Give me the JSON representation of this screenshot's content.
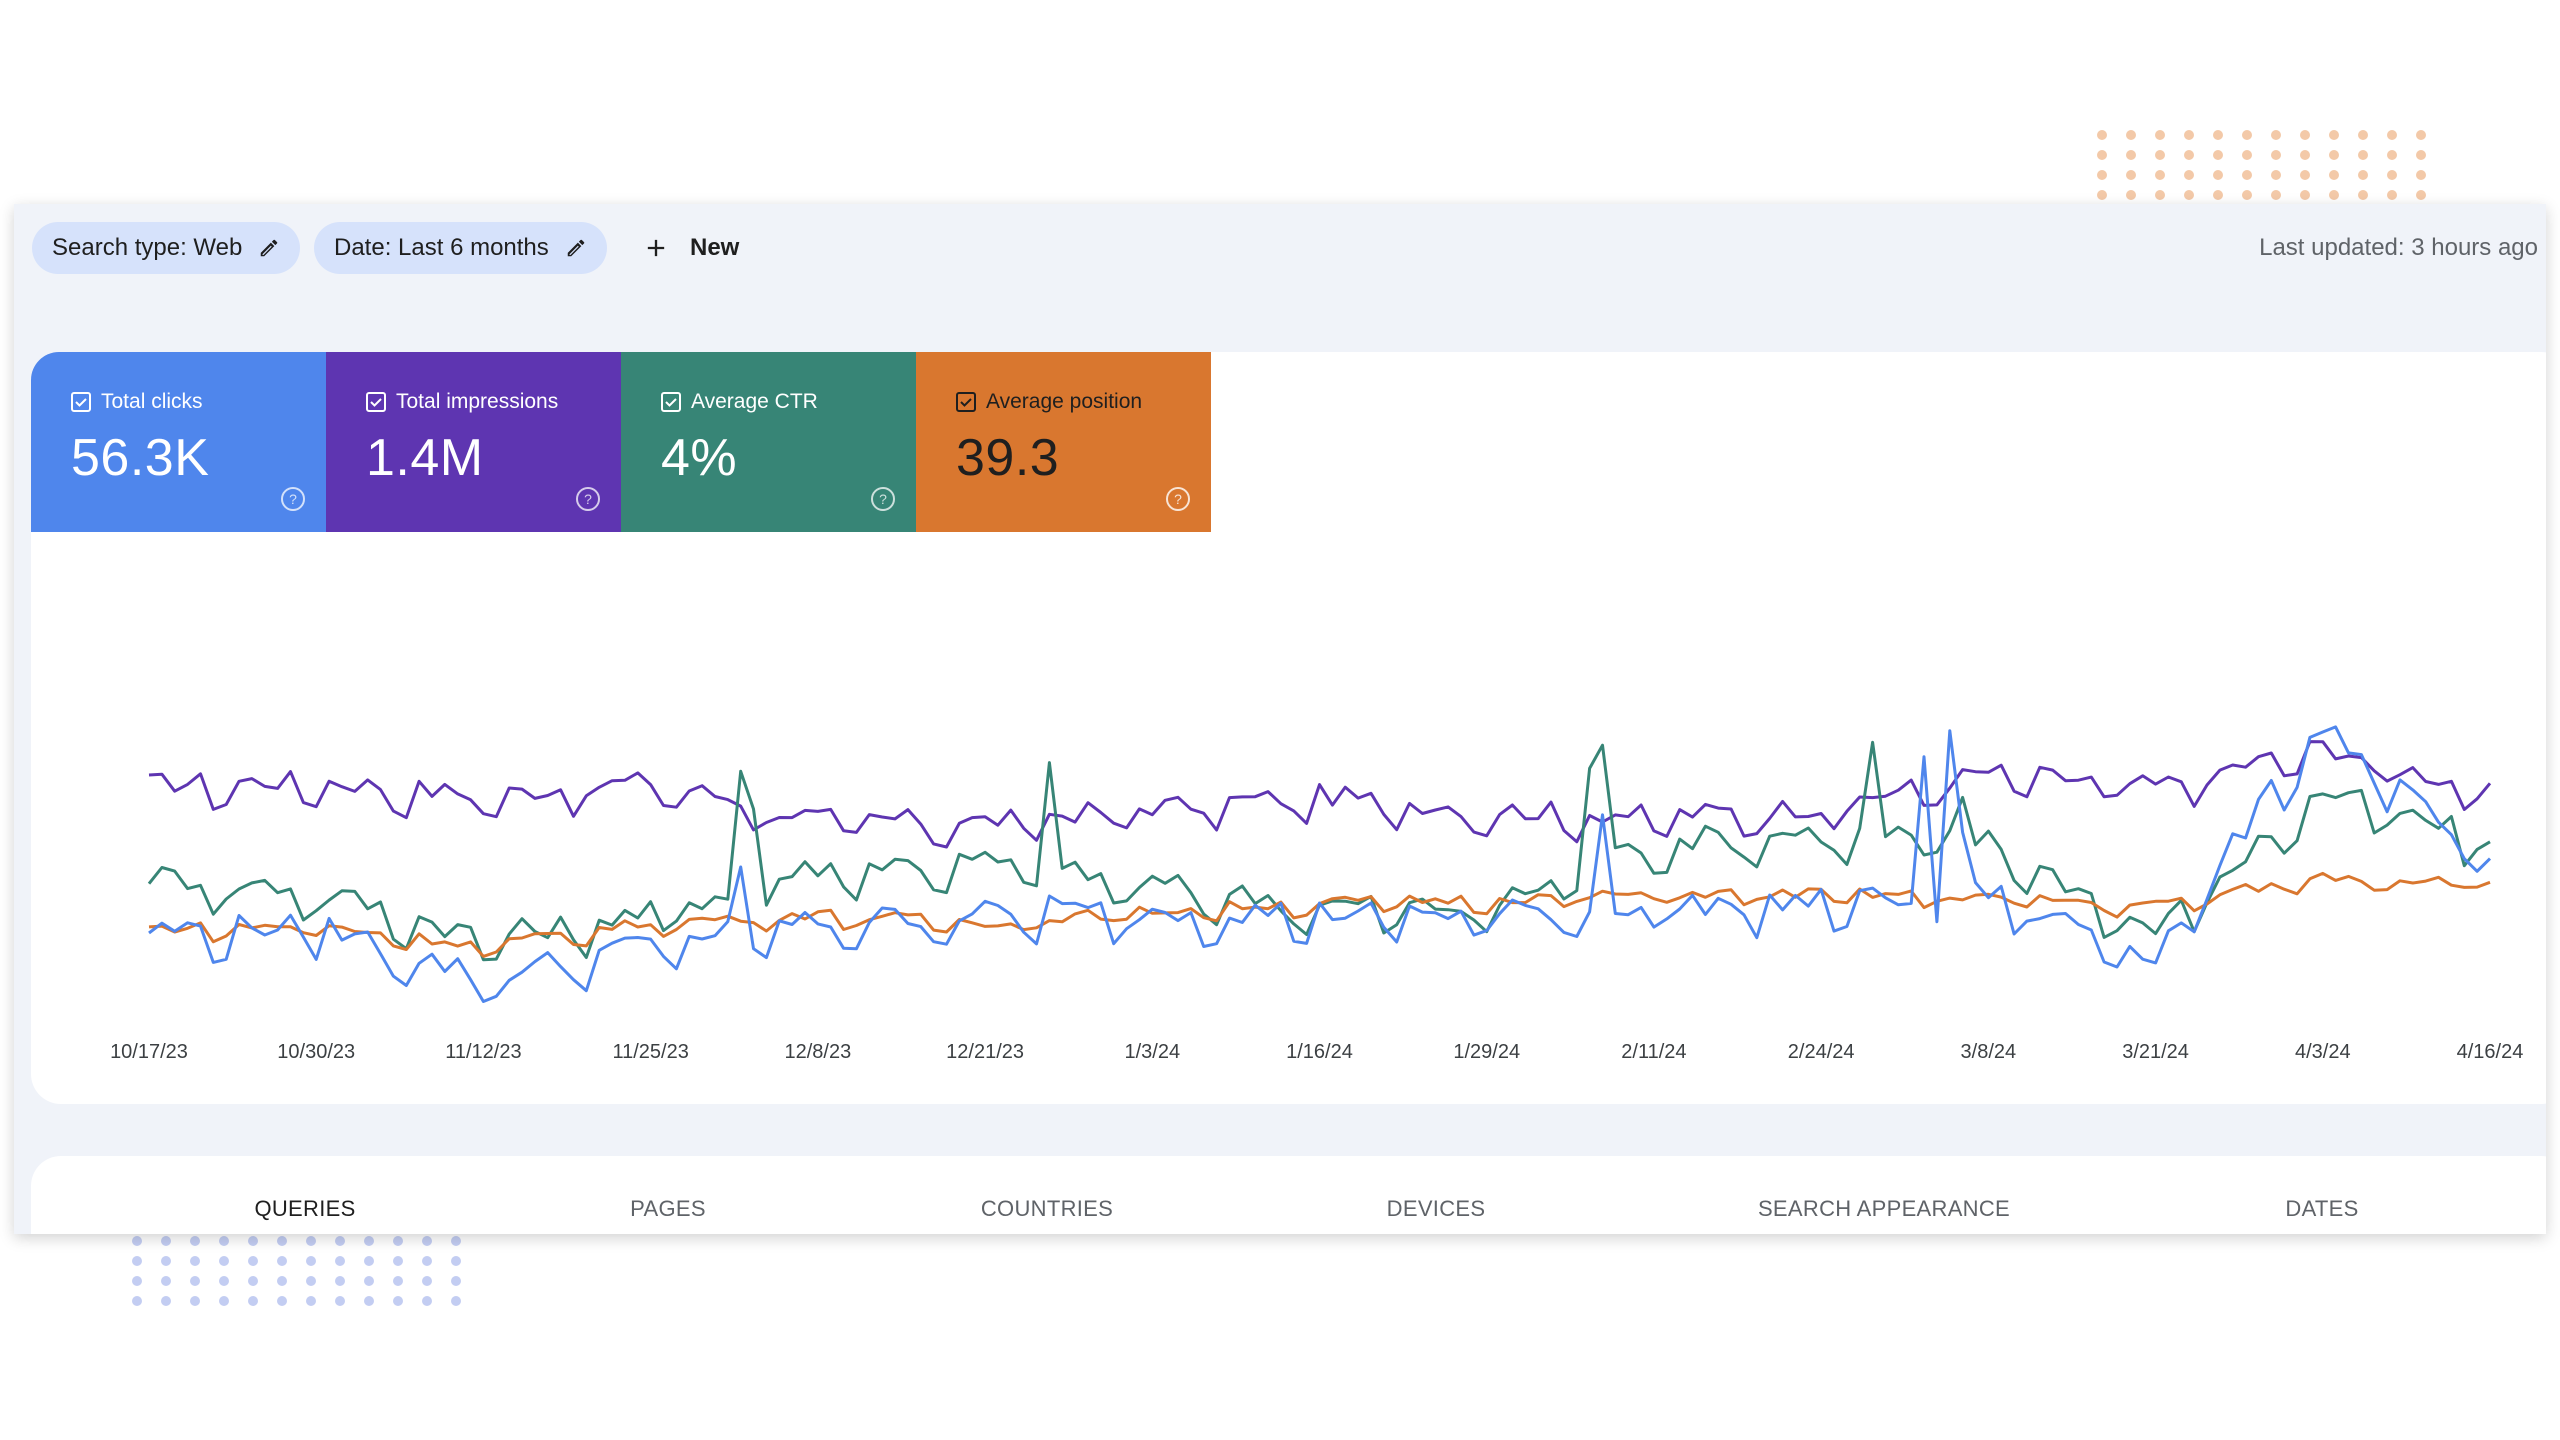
{
  "toolbar": {
    "search_type_chip": "Search type: Web",
    "date_chip": "Date: Last 6 months",
    "new_label": "New",
    "last_updated": "Last updated: 3 hours ago"
  },
  "metrics": [
    {
      "label": "Total clicks",
      "value": "56.3K",
      "color": "#4f86ec",
      "checked": true
    },
    {
      "label": "Total impressions",
      "value": "1.4M",
      "color": "#5e35b1",
      "checked": true
    },
    {
      "label": "Average CTR",
      "value": "4%",
      "color": "#378576",
      "checked": true
    },
    {
      "label": "Average position",
      "value": "39.3",
      "color": "#d9772f",
      "checked": true
    }
  ],
  "tabs": [
    {
      "label": "QUERIES",
      "active": true
    },
    {
      "label": "PAGES",
      "active": false
    },
    {
      "label": "COUNTRIES",
      "active": false
    },
    {
      "label": "DEVICES",
      "active": false
    },
    {
      "label": "SEARCH APPEARANCE",
      "active": false
    },
    {
      "label": "DATES",
      "active": false
    }
  ],
  "chart_data": {
    "type": "line",
    "title": "",
    "xlabel": "",
    "ylabel": "",
    "y_axis_labels_shown": false,
    "grid": false,
    "x_tick_labels": [
      "10/17/23",
      "10/30/23",
      "11/12/23",
      "11/25/23",
      "12/8/23",
      "12/21/23",
      "1/3/24",
      "1/16/24",
      "1/29/24",
      "2/11/24",
      "2/24/24",
      "3/8/24",
      "3/21/24",
      "4/3/24",
      "4/16/24"
    ],
    "x_range": [
      "2023-10-17",
      "2024-04-16"
    ],
    "note": "Axis values are not shown; each series is on its own independent scale (0-1 relative height).",
    "series": [
      {
        "name": "Total impressions",
        "color": "#5e35b1",
        "sampled_every_13_days": [
          0.77,
          0.78,
          0.73,
          0.78,
          0.65,
          0.64,
          0.69,
          0.73,
          0.68,
          0.66,
          0.69,
          0.81,
          0.76,
          0.9,
          0.74
        ]
      },
      {
        "name": "Average CTR",
        "color": "#378576",
        "sampled_every_13_days": [
          0.45,
          0.4,
          0.24,
          0.32,
          0.48,
          0.5,
          0.42,
          0.35,
          0.34,
          0.57,
          0.6,
          0.57,
          0.26,
          0.74,
          0.57
        ]
      },
      {
        "name": "Total clicks",
        "color": "#4f86ec",
        "sampled_every_13_days": [
          0.26,
          0.28,
          0.1,
          0.22,
          0.29,
          0.32,
          0.33,
          0.32,
          0.32,
          0.35,
          0.36,
          0.39,
          0.18,
          0.98,
          0.47
        ]
      },
      {
        "name": "Average position",
        "color": "#d9772f",
        "sampled_every_13_days": [
          0.28,
          0.29,
          0.22,
          0.3,
          0.33,
          0.3,
          0.34,
          0.37,
          0.38,
          0.4,
          0.4,
          0.39,
          0.36,
          0.46,
          0.44
        ]
      }
    ]
  }
}
